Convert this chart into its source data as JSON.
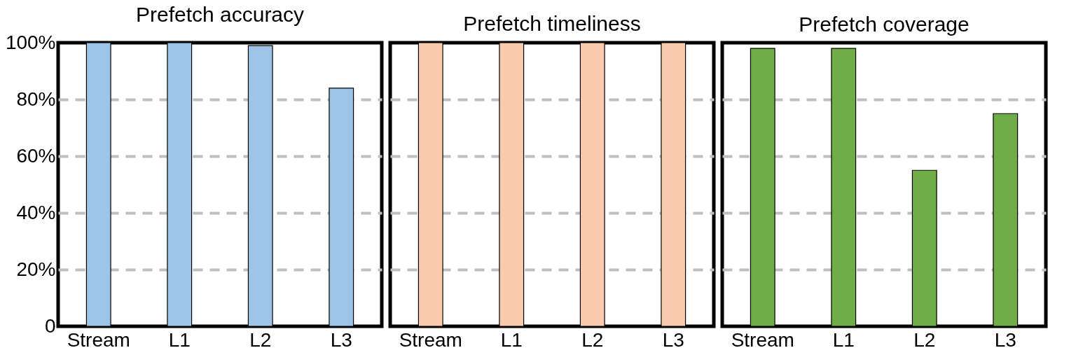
{
  "chart_data": [
    {
      "type": "bar",
      "title": "Prefetch accuracy",
      "categories": [
        "Stream",
        "L1",
        "L2",
        "L3"
      ],
      "values": [
        100,
        100,
        99,
        84
      ],
      "color": "#9dc3e6",
      "ylim": [
        0,
        100
      ],
      "yticks": [
        0,
        {
          "value": 20,
          "label": "20%"
        },
        {
          "value": 40,
          "label": "40%"
        },
        {
          "value": 60,
          "label": "60%"
        },
        {
          "value": 80,
          "label": "80%"
        },
        {
          "value": 100,
          "label": "100%"
        }
      ],
      "grid": "y"
    },
    {
      "type": "bar",
      "title": "Prefetch timeliness",
      "categories": [
        "Stream",
        "L1",
        "L2",
        "L3"
      ],
      "values": [
        100,
        100,
        100,
        100
      ],
      "color": "#f8cbad",
      "ylim": [
        0,
        100
      ],
      "yticks": [
        0,
        20,
        40,
        60,
        80,
        100
      ],
      "grid": "y",
      "tick_labels": "x"
    },
    {
      "type": "bar",
      "title": "Prefetch coverage",
      "categories": [
        "Stream",
        "L1",
        "L2",
        "L3"
      ],
      "values": [
        98,
        98,
        55,
        75
      ],
      "color": "#70ad47",
      "ylim": [
        0,
        100
      ],
      "yticks": [
        0,
        20,
        40,
        60,
        80,
        100
      ],
      "grid": "y",
      "tick_labels": "x"
    }
  ]
}
